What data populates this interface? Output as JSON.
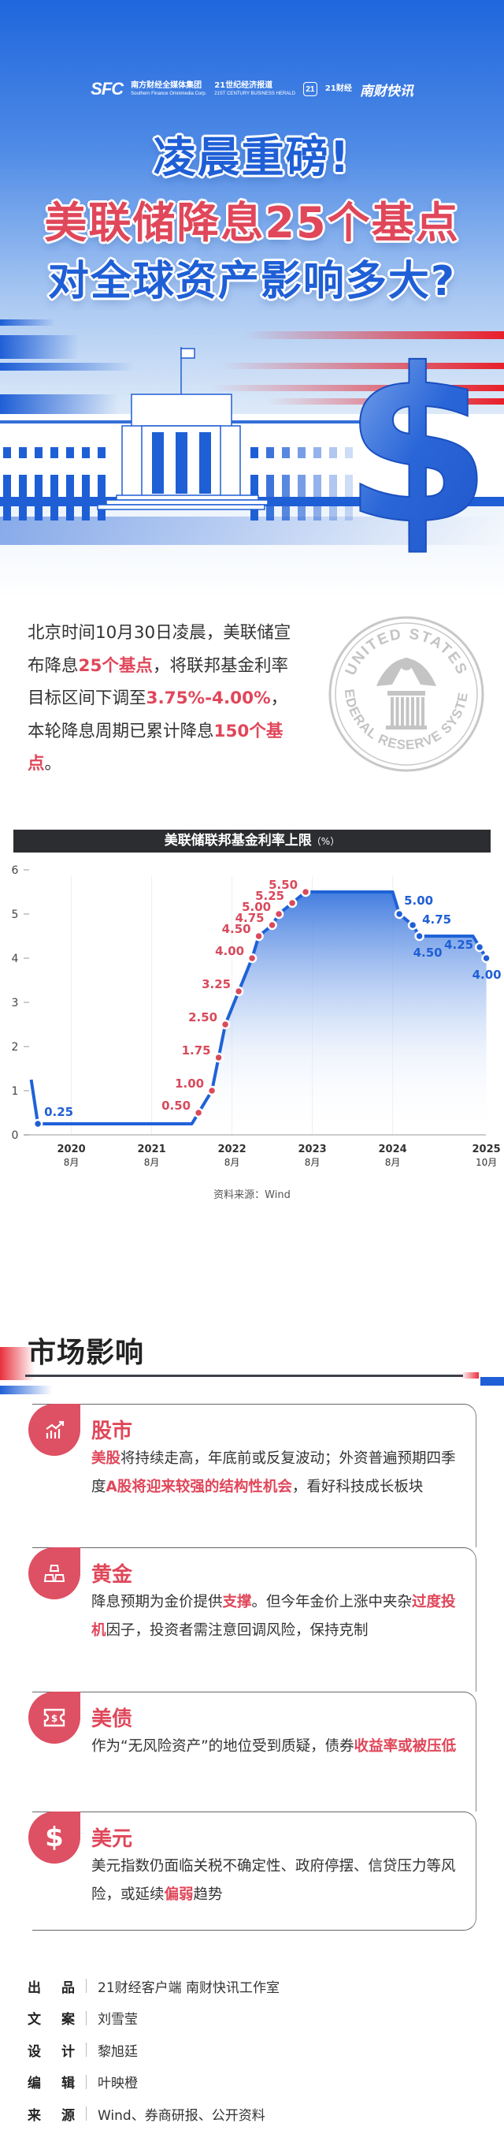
{
  "header": {
    "logos": {
      "sfc": "SFC",
      "sfc_name": "南方财经全媒体集团",
      "sfc_en": "Southern Finance Omnimedia Corp.",
      "herald": "21世纪经济报道",
      "herald_en": "21ST CENTURY BUSINESS HERALD",
      "app_mark": "21",
      "app_name": "21财经",
      "kuaixun": "南财快讯"
    },
    "title_line1": "凌晨重磅!",
    "title_line2": "美联储降息25个基点",
    "title_line3": "对全球资产影响多大?",
    "colors": {
      "blue": "#1f5fd6",
      "red": "#e0475a"
    }
  },
  "intro": [
    {
      "text": "北京时间10月30日凌晨，美联储宣布降息"
    },
    {
      "text": "25个基点",
      "hl": true
    },
    {
      "text": "，将联邦基金利率目标区间下调至"
    },
    {
      "text": "3.75%-4.00%",
      "hl": true
    },
    {
      "text": "，本轮降息周期已累计降息"
    },
    {
      "text": "150个基点",
      "hl": true
    },
    {
      "text": "。"
    }
  ],
  "seal": {
    "top": "UNITED STATES",
    "bottom": "FEDERAL RESERVE SYSTEM"
  },
  "chart_data": {
    "type": "line",
    "title": "美联储联邦基金利率上限",
    "unit": "（%）",
    "ylim": [
      0,
      6
    ],
    "yticks": [
      "0",
      "1",
      "2",
      "3",
      "4",
      "5",
      "6"
    ],
    "xticks": [
      {
        "year": "2020",
        "month": "8月",
        "date": "2020-08"
      },
      {
        "year": "2021",
        "month": "8月",
        "date": "2021-08"
      },
      {
        "year": "2022",
        "month": "8月",
        "date": "2022-08"
      },
      {
        "year": "2023",
        "month": "8月",
        "date": "2023-08"
      },
      {
        "year": "2024",
        "month": "8月",
        "date": "2024-08"
      },
      {
        "year": "2025",
        "month": "10月",
        "date": "2025-10"
      }
    ],
    "grid": "vertical",
    "series": [
      {
        "date": "2020-02",
        "value": 1.25
      },
      {
        "date": "2020-03",
        "value": 0.25,
        "label": "0.25",
        "color": "#1f5fd6"
      },
      {
        "date": "2022-02",
        "value": 0.25
      },
      {
        "date": "2022-03",
        "value": 0.5,
        "label": "0.50",
        "color": "#d84a5c"
      },
      {
        "date": "2022-05",
        "value": 1.0,
        "label": "1.00",
        "color": "#d84a5c"
      },
      {
        "date": "2022-06",
        "value": 1.75,
        "label": "1.75",
        "color": "#d84a5c"
      },
      {
        "date": "2022-07",
        "value": 2.5,
        "label": "2.50",
        "color": "#d84a5c"
      },
      {
        "date": "2022-09",
        "value": 3.25,
        "label": "3.25",
        "color": "#d84a5c"
      },
      {
        "date": "2022-11",
        "value": 4.0,
        "label": "4.00",
        "color": "#d84a5c"
      },
      {
        "date": "2022-12",
        "value": 4.5,
        "label": "4.50",
        "color": "#d84a5c"
      },
      {
        "date": "2023-02",
        "value": 4.75,
        "label": "4.75",
        "color": "#d84a5c"
      },
      {
        "date": "2023-03",
        "value": 5.0,
        "label": "5.00",
        "color": "#d84a5c"
      },
      {
        "date": "2023-05",
        "value": 5.25,
        "label": "5.25",
        "color": "#d84a5c"
      },
      {
        "date": "2023-07",
        "value": 5.5,
        "label": "5.50",
        "color": "#d84a5c"
      },
      {
        "date": "2024-08",
        "value": 5.5
      },
      {
        "date": "2024-09",
        "value": 5.0,
        "label": "5.00",
        "color": "#1f5fd6"
      },
      {
        "date": "2024-11",
        "value": 4.75,
        "label": "4.75",
        "color": "#1f5fd6"
      },
      {
        "date": "2024-12",
        "value": 4.5,
        "label": "4.50",
        "color": "#1f5fd6"
      },
      {
        "date": "2025-08",
        "value": 4.5
      },
      {
        "date": "2025-09",
        "value": 4.25,
        "label": "4.25",
        "color": "#1f5fd6"
      },
      {
        "date": "2025-10",
        "value": 4.0,
        "label": "4.00",
        "color": "#1f5fd6"
      }
    ],
    "source": "资料来源：Wind"
  },
  "section": {
    "title": "市场影响"
  },
  "cards": [
    {
      "icon": "chart-up-icon",
      "title": "股市",
      "body": [
        {
          "text": "美股",
          "hl": true
        },
        {
          "text": "将持续走高，年底前或反复波动；外资普遍预期四季度"
        },
        {
          "text": "A股将迎来较强的结构性机会",
          "hl": true
        },
        {
          "text": "，看好科技成长板块"
        }
      ]
    },
    {
      "icon": "gold-bars-icon",
      "title": "黄金",
      "body": [
        {
          "text": "降息预期为金价提供"
        },
        {
          "text": "支撑",
          "hl": true
        },
        {
          "text": "。但今年金价上涨中夹杂"
        },
        {
          "text": "过度投机",
          "hl": true
        },
        {
          "text": "因子，投资者需注意回调风险，保持克制"
        }
      ]
    },
    {
      "icon": "bond-ticket-icon",
      "title": "美债",
      "body": [
        {
          "text": "作为“无风险资产”的地位受到质疑，债券"
        },
        {
          "text": "收益率或被压低",
          "hl": true
        }
      ]
    },
    {
      "icon": "dollar-icon",
      "title": "美元",
      "body": [
        {
          "text": "美元指数仍面临关税不确定性、政府停摆、信贷压力等风险，或延续"
        },
        {
          "text": "偏弱",
          "hl": true
        },
        {
          "text": "趋势"
        }
      ]
    }
  ],
  "credits": [
    {
      "k1": "出",
      "k2": "品",
      "v": "21财经客户端 南财快讯工作室"
    },
    {
      "k1": "文",
      "k2": "案",
      "v": "刘雪莹"
    },
    {
      "k1": "设",
      "k2": "计",
      "v": "黎旭廷"
    },
    {
      "k1": "编",
      "k2": "辑",
      "v": "叶映橙"
    },
    {
      "k1": "来",
      "k2": "源",
      "v": "Wind、券商研报、公开资料"
    }
  ]
}
